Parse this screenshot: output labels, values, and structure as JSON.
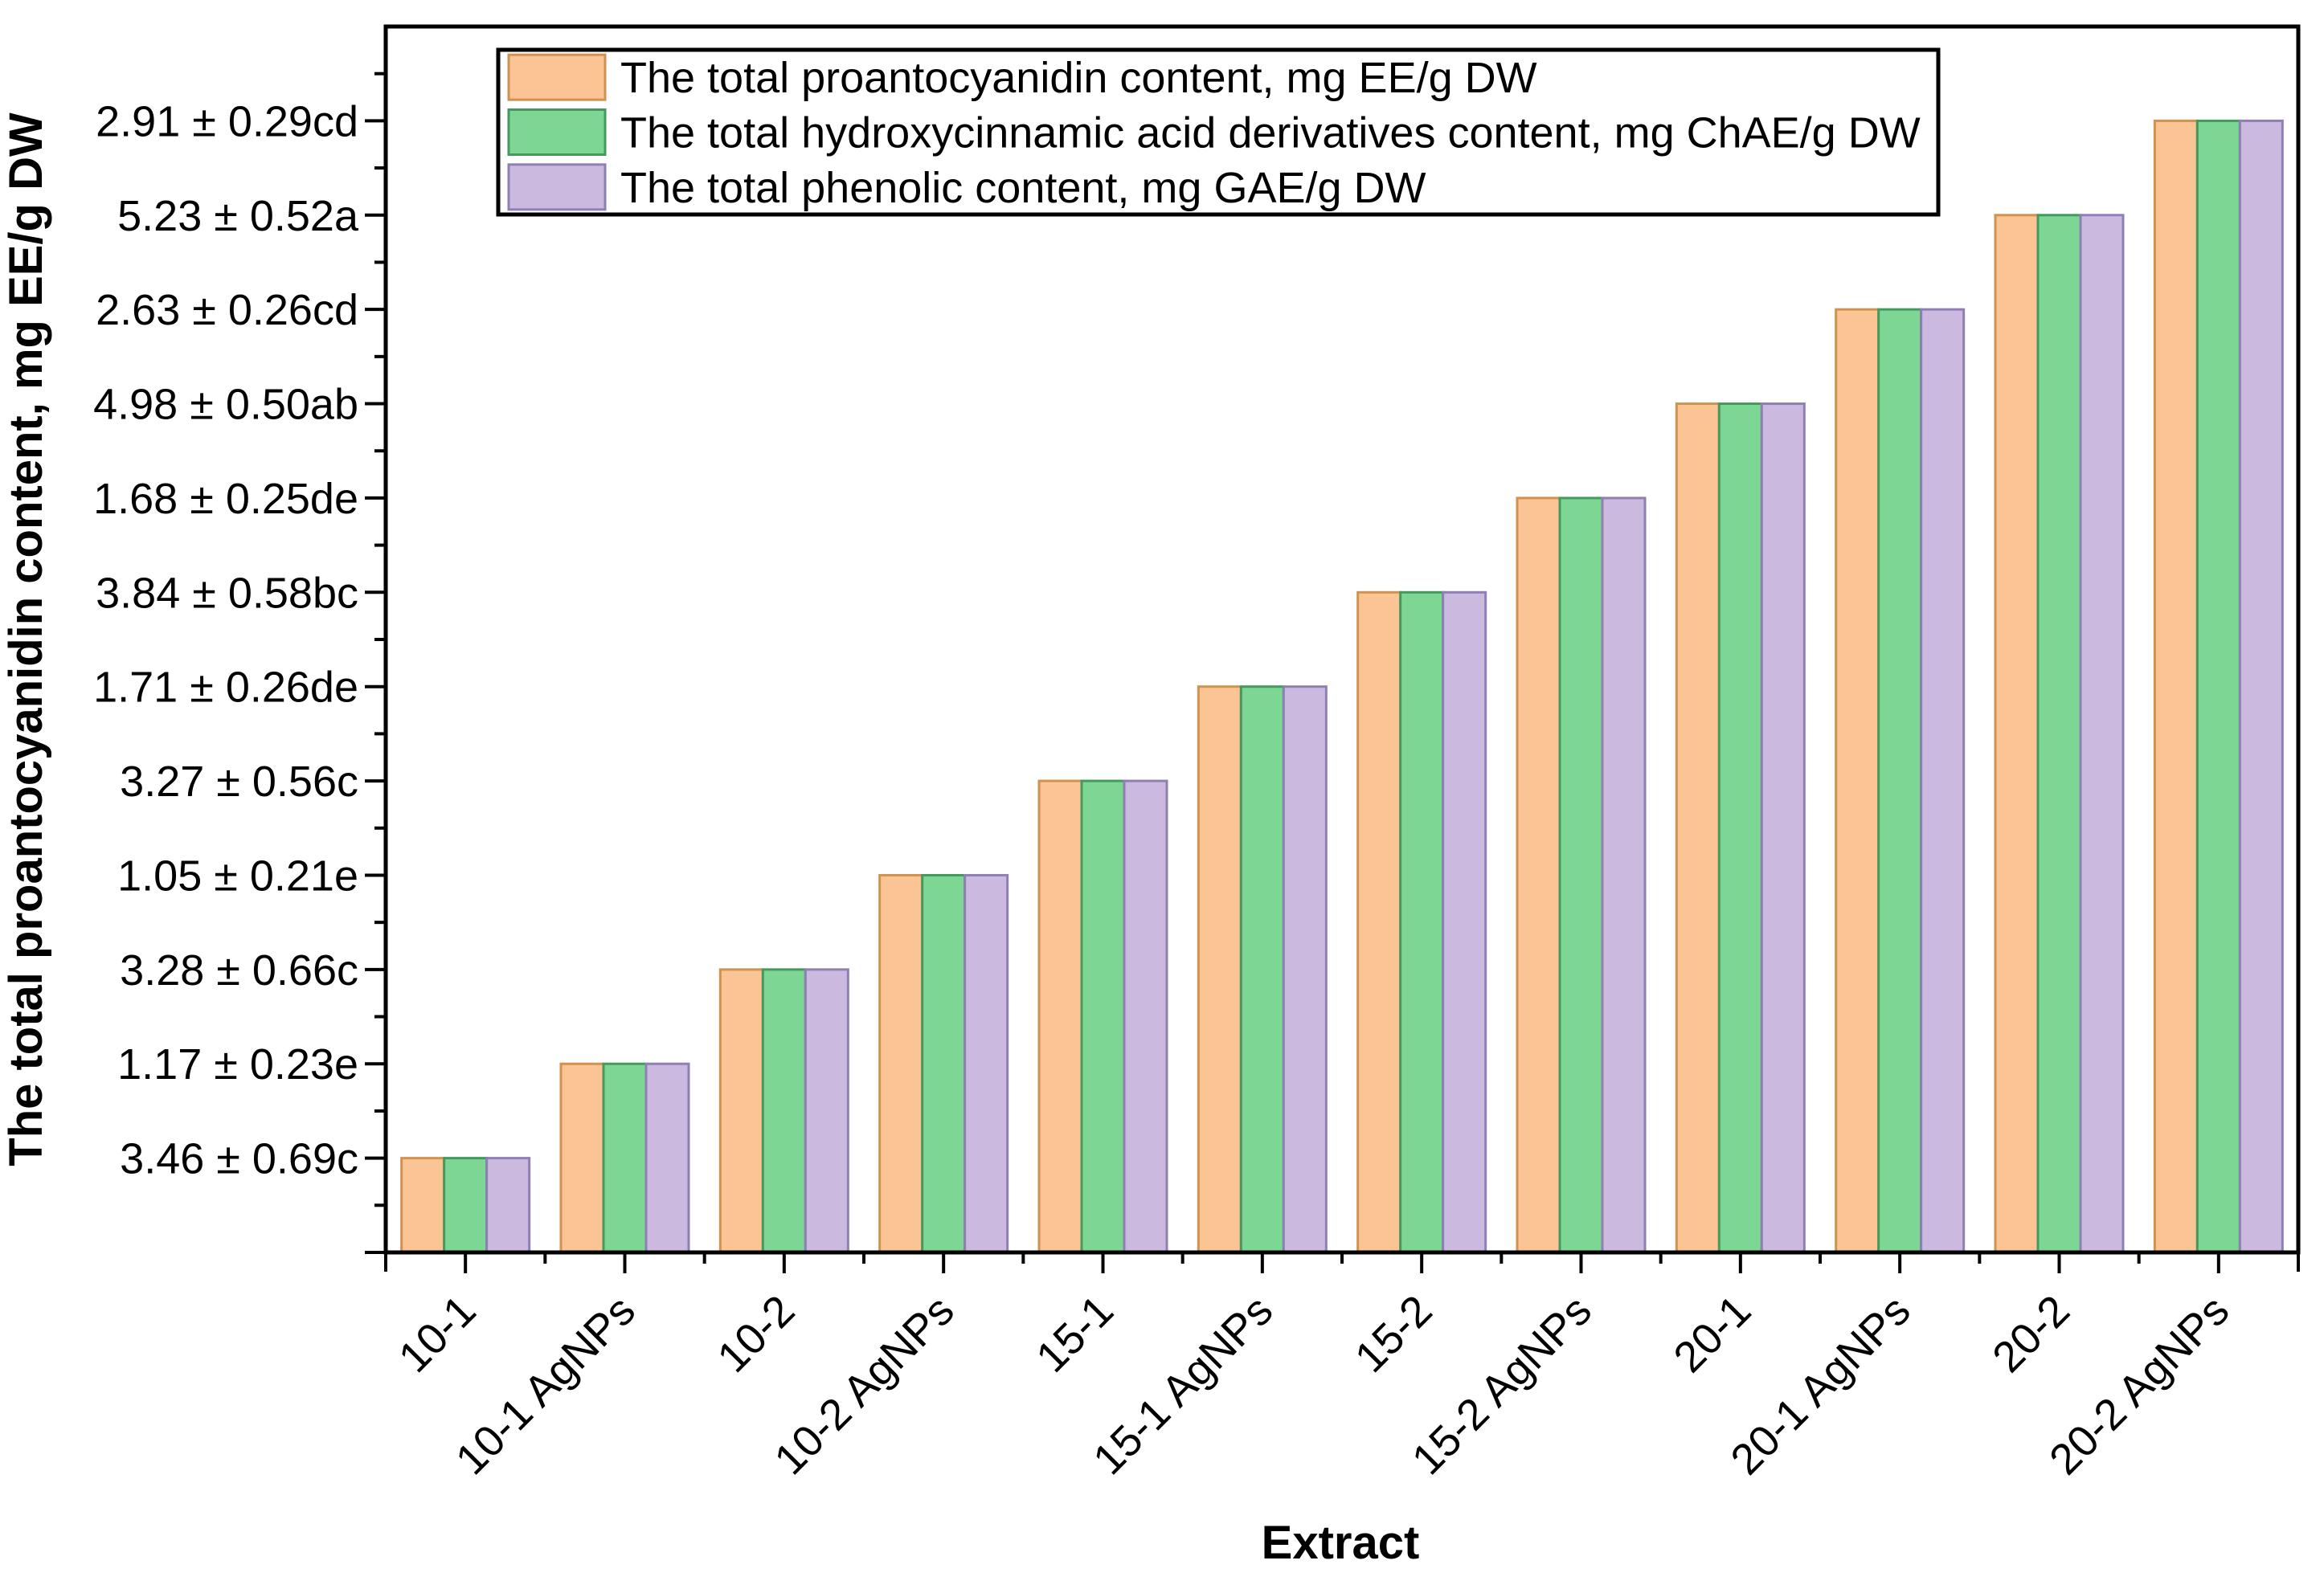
{
  "figure": {
    "background": "#ffffff",
    "axis_color": "#000000",
    "text_color": "#000000"
  },
  "chart_data": {
    "type": "bar",
    "title": "",
    "xlabel": "Extract",
    "ylabel": "The total proantocyanidin content, mg EE/g DW",
    "grid": false,
    "categories": [
      "10-1",
      "10-1 AgNPs",
      "10-2",
      "10-2 AgNPs",
      "15-1",
      "15-1 AgNPs",
      "15-2",
      "15-2 AgNPs",
      "20-1",
      "20-1 AgNPs",
      "20-2",
      "20-2 AgNPs"
    ],
    "series": [
      {
        "name": "The total proantocyanidin content, mg EE/g DW",
        "fill": "#FAC494",
        "stroke": "#D2924F",
        "values": [
          1,
          2,
          3,
          4,
          5,
          6,
          7,
          8,
          9,
          10,
          11,
          12
        ]
      },
      {
        "name": "The total hydroxycinnamic acid derivatives content, mg ChAE/g DW",
        "fill": "#7ED694",
        "stroke": "#449A5E",
        "values": [
          1,
          2,
          3,
          4,
          5,
          6,
          7,
          8,
          9,
          10,
          11,
          12
        ]
      },
      {
        "name": "The total phenolic content, mg GAE/g DW",
        "fill": "#CBB9DF",
        "stroke": "#8E7FB4",
        "values": [
          1,
          2,
          3,
          4,
          5,
          6,
          7,
          8,
          9,
          10,
          11,
          12
        ]
      }
    ],
    "y_axis": {
      "min": 0,
      "max": 13,
      "major_tick_values": [
        1,
        2,
        3,
        4,
        5,
        6,
        7,
        8,
        9,
        10,
        11,
        12
      ],
      "minor_tick_step": 0.5,
      "tick_labels_bottom_to_top": [
        "3.46 ± 0.69c",
        "1.17 ± 0.23e",
        "3.28 ± 0.66c",
        "1.05 ± 0.21e",
        "3.27 ± 0.56c",
        "1.71 ± 0.26de",
        "3.84 ± 0.58bc",
        "1.68 ± 0.25de",
        "4.98 ± 0.50ab",
        "2.63 ± 0.26cd",
        "5.23 ± 0.52a",
        "2.91 ± 0.29cd"
      ]
    },
    "x_axis": {
      "major_ticks": "at-category-centers",
      "minor_ticks": "at-category-boundaries",
      "label_rotation_deg": -45
    },
    "legend": {
      "position": "top-left-inside",
      "border_color": "#000000",
      "entries": [
        "The total proantocyanidin content, mg EE/g DW",
        "The total hydroxycinnamic acid derivatives content, mg ChAE/g DW",
        "The total phenolic content, mg GAE/g DW"
      ]
    }
  }
}
